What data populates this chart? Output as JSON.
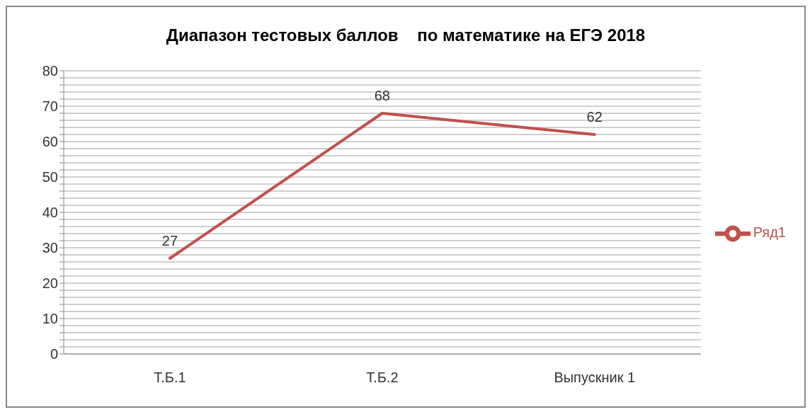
{
  "chart_data": {
    "type": "line",
    "title": "Диапазон тестовых баллов    по математике на ЕГЭ 2018",
    "categories": [
      "Т.Б.1",
      "Т.Б.2",
      "Выпускник 1"
    ],
    "series": [
      {
        "name": "Ряд1",
        "color": "#c0504d",
        "values": [
          27,
          68,
          62
        ]
      }
    ],
    "ylim": [
      0,
      80
    ],
    "yticks": [
      0,
      {
        "value": 2,
        "label": null
      },
      {
        "value": 4,
        "label": null
      },
      {
        "value": 6,
        "label": null
      },
      {
        "value": 8,
        "label": null
      },
      10,
      {
        "value": 12,
        "label": null
      },
      {
        "value": 14,
        "label": null
      },
      {
        "value": 16,
        "label": null
      },
      {
        "value": 18,
        "label": null
      },
      20,
      {
        "value": 22,
        "label": null
      },
      {
        "value": 24,
        "label": null
      },
      {
        "value": 26,
        "label": null
      },
      {
        "value": 28,
        "label": null
      },
      30,
      {
        "value": 32,
        "label": null
      },
      {
        "value": 34,
        "label": null
      },
      {
        "value": 36,
        "label": null
      },
      {
        "value": 38,
        "label": null
      },
      40,
      {
        "value": 42,
        "label": null
      },
      {
        "value": 44,
        "label": null
      },
      {
        "value": 46,
        "label": null
      },
      {
        "value": 48,
        "label": null
      },
      50,
      {
        "value": 52,
        "label": null
      },
      {
        "value": 54,
        "label": null
      },
      {
        "value": 56,
        "label": null
      },
      {
        "value": 58,
        "label": null
      },
      60,
      {
        "value": 62,
        "label": null
      },
      {
        "value": 64,
        "label": null
      },
      {
        "value": 66,
        "label": null
      },
      {
        "value": 68,
        "label": null
      },
      70,
      {
        "value": 72,
        "label": null
      },
      {
        "value": 74,
        "label": null
      },
      {
        "value": 76,
        "label": null
      },
      {
        "value": 78,
        "label": null
      },
      80
    ],
    "grid": "y",
    "legend": "right",
    "marker": "none",
    "line_style": "solid",
    "data_labels": true
  }
}
